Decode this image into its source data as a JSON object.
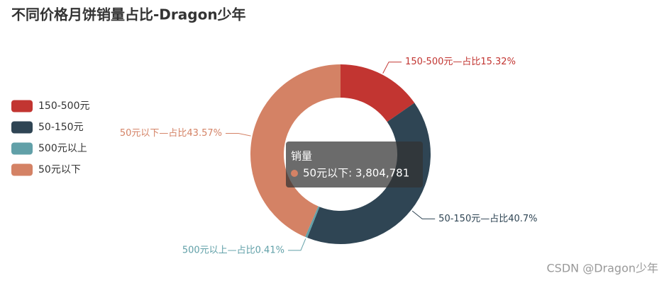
{
  "chart_data": {
    "type": "pie",
    "title": "不同价格月饼销量占比-Dragon少年",
    "categories": [
      "150-500元",
      "50-150元",
      "500元以上",
      "50元以下"
    ],
    "values": [
      15.32,
      40.7,
      0.41,
      43.57
    ],
    "value_labels": [
      "150-500元—占比15.32%",
      "50-150元—占比40.7%",
      "500元以上—占比0.41%",
      "50元以下—占比43.57%"
    ],
    "colors": [
      "#c23531",
      "#2f4554",
      "#61a0a8",
      "#d48265"
    ],
    "tooltip": {
      "title": "销量",
      "text": "50元以下: 3,804,781"
    },
    "watermark": "CSDN @Dragon少年"
  }
}
